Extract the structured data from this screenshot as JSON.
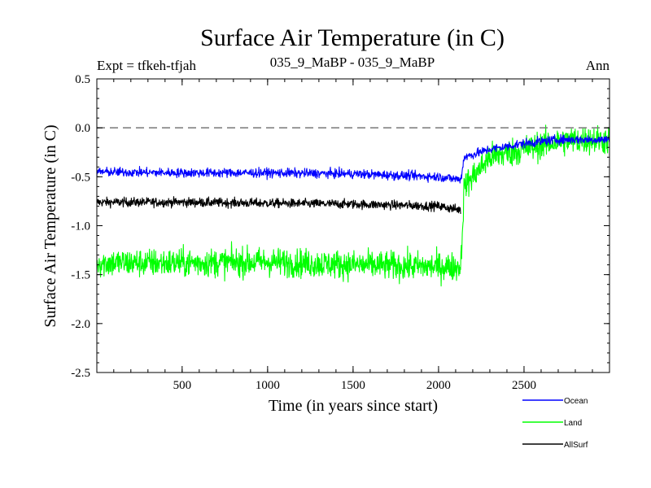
{
  "chart_data": {
    "type": "line",
    "title": "Surface Air Temperature (in C)",
    "subtitle": "035_9_MaBP - 035_9_MaBP",
    "experiment": "Expt = tfkeh-tfjah",
    "period": "Ann",
    "xlabel": "Time (in years since start)",
    "ylabel": "Surface Air Temperature (in C)",
    "xlim": [
      1,
      3000
    ],
    "ylim": [
      -2.5,
      0.5
    ],
    "x_ticks": [
      500,
      1000,
      1500,
      2000,
      2500
    ],
    "y_ticks": [
      -2.5,
      -2.0,
      -1.5,
      -1.0,
      -0.5,
      0.0,
      0.5
    ],
    "y_tick_labels": [
      "-2.5",
      "-2.0",
      "-1.5",
      "-1.0",
      "-0.5",
      "0.0",
      "0.5"
    ],
    "reference_line": {
      "y": 0.0,
      "style": "dashed"
    },
    "grid": false,
    "legend_position": "bottom-right",
    "series": [
      {
        "name": "Ocean",
        "color": "#0000ff",
        "x": [
          1,
          500,
          1000,
          1500,
          2000,
          2130,
          2150,
          2300,
          2500,
          2700,
          2900,
          3000
        ],
        "values": [
          -0.45,
          -0.46,
          -0.46,
          -0.47,
          -0.5,
          -0.53,
          -0.3,
          -0.22,
          -0.16,
          -0.12,
          -0.12,
          -0.12
        ],
        "noise_amplitude": 0.08
      },
      {
        "name": "Land",
        "color": "#00ff00",
        "x": [
          1,
          500,
          1000,
          1500,
          2000,
          2130,
          2150,
          2300,
          2500,
          2700,
          2900,
          3000
        ],
        "values": [
          -1.38,
          -1.38,
          -1.37,
          -1.4,
          -1.42,
          -1.42,
          -0.6,
          -0.3,
          -0.22,
          -0.14,
          -0.12,
          -0.13
        ],
        "noise_amplitude": 0.25
      },
      {
        "name": "AllSurf",
        "color": "#000000",
        "x": [
          1,
          500,
          1000,
          1500,
          2000,
          2130
        ],
        "values": [
          -0.76,
          -0.76,
          -0.77,
          -0.78,
          -0.8,
          -0.84
        ],
        "noise_amplitude": 0.08
      }
    ]
  }
}
